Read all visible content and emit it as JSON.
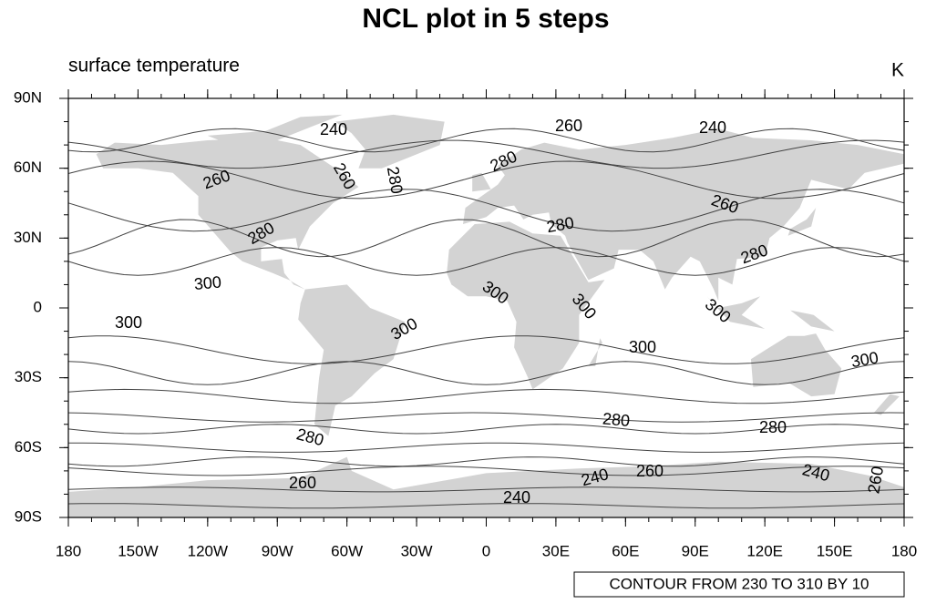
{
  "title": "NCL plot in 5 steps",
  "left_string": "surface temperature",
  "right_string": "K",
  "info_label": "CONTOUR FROM 230 TO 310 BY 10",
  "lon_ticks": [
    {
      "value": -180,
      "label": "180"
    },
    {
      "value": -150,
      "label": "150W"
    },
    {
      "value": -120,
      "label": "120W"
    },
    {
      "value": -90,
      "label": "90W"
    },
    {
      "value": -60,
      "label": "60W"
    },
    {
      "value": -30,
      "label": "30W"
    },
    0,
    {
      "value": 30,
      "label": "30E"
    },
    {
      "value": 60,
      "label": "60E"
    },
    {
      "value": 90,
      "label": "90E"
    },
    {
      "value": 120,
      "label": "120E"
    },
    {
      "value": 150,
      "label": "150E"
    },
    180
  ],
  "lat_ticks": [
    {
      "value": 90,
      "label": "90N"
    },
    {
      "value": 60,
      "label": "60N"
    },
    {
      "value": 30,
      "label": "30N"
    },
    0,
    {
      "value": -30,
      "label": "30S"
    },
    {
      "value": -60,
      "label": "60S"
    },
    {
      "value": -90,
      "label": "90S"
    }
  ],
  "contour_labels": [
    "240",
    "260",
    "240",
    "260",
    "260",
    "280",
    "280",
    "280",
    "260",
    "280",
    "280",
    "300",
    "300",
    "300",
    "300",
    "300",
    "300",
    "300",
    "300",
    "280",
    "280",
    "280",
    "260",
    "240",
    "260",
    "240",
    "240",
    "260"
  ]
}
